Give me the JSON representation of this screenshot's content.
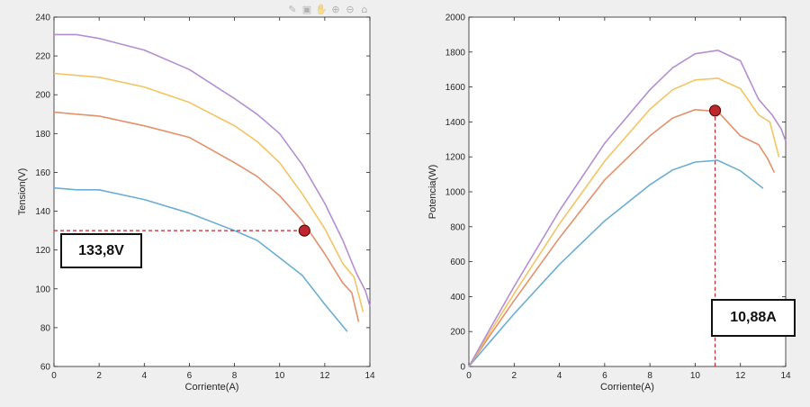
{
  "toolbar": {
    "icons": [
      {
        "name": "brush-icon",
        "glyph": "✎"
      },
      {
        "name": "save-icon",
        "glyph": "▣"
      },
      {
        "name": "pan-icon",
        "glyph": "✋"
      },
      {
        "name": "zoom-in-icon",
        "glyph": "⊕"
      },
      {
        "name": "zoom-out-icon",
        "glyph": "⊖"
      },
      {
        "name": "home-icon",
        "glyph": "⌂"
      }
    ]
  },
  "colors": {
    "background": "#efefef",
    "axes_bg": "#ffffff",
    "series": [
      "#6aaed6",
      "#e2916a",
      "#f2c462",
      "#b58ed2"
    ],
    "marker": "#c0272d",
    "guide": "#c0272d"
  },
  "chart_data": [
    {
      "type": "line",
      "title": "",
      "xlabel": "Corriente(A)",
      "ylabel": "Tension(V)",
      "xlim": [
        0,
        14
      ],
      "ylim": [
        60,
        240
      ],
      "xticks": [
        0,
        2,
        4,
        6,
        8,
        10,
        12,
        14
      ],
      "yticks": [
        60,
        80,
        100,
        120,
        140,
        160,
        180,
        200,
        220,
        240
      ],
      "grid": false,
      "series": [
        {
          "x": [
            0,
            1,
            2,
            4,
            6,
            8,
            9,
            10,
            11,
            12,
            13
          ],
          "y": [
            152,
            151,
            151,
            146,
            139,
            130,
            125,
            116,
            107,
            92,
            78
          ]
        },
        {
          "x": [
            0,
            1,
            2,
            4,
            6,
            8,
            9,
            10,
            11,
            12,
            12.8,
            13.2,
            13.5
          ],
          "y": [
            191,
            190,
            189,
            184,
            178,
            165,
            158,
            148,
            135,
            118,
            103,
            98,
            83
          ]
        },
        {
          "x": [
            0,
            1,
            2,
            4,
            6,
            8,
            9,
            10,
            11,
            12,
            12.8,
            13.3,
            13.7
          ],
          "y": [
            211,
            210,
            209,
            204,
            196,
            184,
            176,
            165,
            149,
            131,
            113,
            106,
            88
          ]
        },
        {
          "x": [
            0,
            1,
            2,
            4,
            6,
            8,
            9,
            10,
            11,
            12,
            12.8,
            13.4,
            13.8,
            14
          ],
          "y": [
            231,
            231,
            229,
            223,
            213,
            198,
            190,
            180,
            164,
            144,
            125,
            108,
            99,
            91
          ]
        }
      ],
      "marker": {
        "x": 11.1,
        "y": 130
      },
      "annotation": {
        "text": "133,8V"
      }
    },
    {
      "type": "line",
      "title": "",
      "xlabel": "Corriente(A)",
      "ylabel": "Potencia(W)",
      "xlim": [
        0,
        14
      ],
      "ylim": [
        0,
        2000
      ],
      "xticks": [
        0,
        2,
        4,
        6,
        8,
        10,
        12,
        14
      ],
      "yticks": [
        0,
        200,
        400,
        600,
        800,
        1000,
        1200,
        1400,
        1600,
        1800,
        2000
      ],
      "grid": false,
      "series": [
        {
          "x": [
            0,
            1,
            2,
            4,
            6,
            8,
            9,
            10,
            11,
            12,
            13
          ],
          "y": [
            0,
            151,
            302,
            584,
            834,
            1040,
            1125,
            1170,
            1180,
            1120,
            1020
          ]
        },
        {
          "x": [
            0,
            1,
            2,
            4,
            6,
            8,
            9,
            10,
            10.5,
            11,
            12,
            12.8,
            13.2,
            13.5
          ],
          "y": [
            0,
            190,
            378,
            736,
            1068,
            1320,
            1422,
            1470,
            1465,
            1460,
            1320,
            1270,
            1190,
            1110
          ]
        },
        {
          "x": [
            0,
            1,
            2,
            4,
            6,
            8,
            9,
            10,
            11,
            12,
            12.8,
            13.3,
            13.7
          ],
          "y": [
            0,
            210,
            418,
            816,
            1176,
            1472,
            1584,
            1640,
            1650,
            1590,
            1440,
            1400,
            1200
          ]
        },
        {
          "x": [
            0,
            1,
            2,
            4,
            6,
            8,
            9,
            10,
            11,
            12,
            12.8,
            13.4,
            13.8,
            14
          ],
          "y": [
            0,
            231,
            458,
            892,
            1278,
            1584,
            1710,
            1790,
            1810,
            1750,
            1530,
            1440,
            1360,
            1290
          ]
        }
      ],
      "marker": {
        "x": 10.88,
        "y": 1465
      },
      "annotation": {
        "text": "10,88A"
      }
    }
  ]
}
